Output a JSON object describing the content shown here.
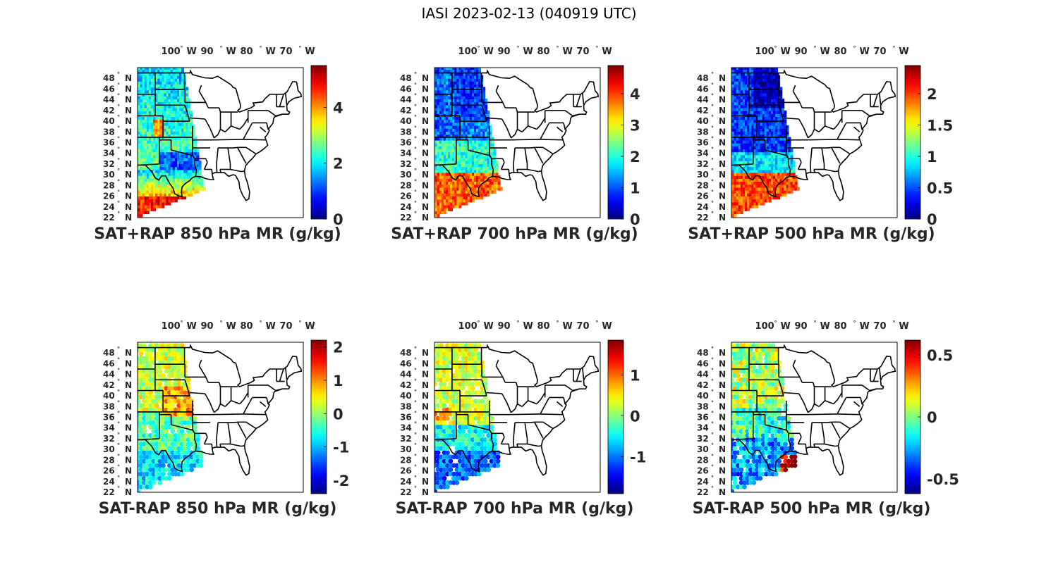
{
  "figure_title": "IASI 2023-02-13 (040919 UTC)",
  "lon_labels": [
    "100",
    "90",
    "80",
    "70"
  ],
  "lon_hemisphere": "W",
  "lat_labels": [
    "48",
    "46",
    "44",
    "42",
    "40",
    "38",
    "36",
    "34",
    "32",
    "30",
    "28",
    "26",
    "24",
    "22"
  ],
  "lat_hemisphere": "N",
  "degree_symbol": "°",
  "colormap": "jet",
  "colors": {
    "land_outline": "#000000",
    "text": "#262626",
    "background": "#ffffff"
  },
  "panels": [
    {
      "title": "SAT+RAP 850 hPa MR (g/kg)",
      "field": "total",
      "level": "850",
      "clim": [
        0,
        5.5
      ],
      "ticks": [
        "0",
        "2",
        "4"
      ],
      "tick_values": [
        0,
        2,
        4
      ]
    },
    {
      "title": "SAT+RAP 700 hPa MR (g/kg)",
      "field": "total",
      "level": "700",
      "clim": [
        0,
        4.9
      ],
      "ticks": [
        "0",
        "1",
        "2",
        "3",
        "4"
      ],
      "tick_values": [
        0,
        1,
        2,
        3,
        4
      ]
    },
    {
      "title": "SAT+RAP 500 hPa MR (g/kg)",
      "field": "total",
      "level": "500",
      "clim": [
        0,
        2.45
      ],
      "ticks": [
        "0",
        "0.5",
        "1",
        "1.5",
        "2"
      ],
      "tick_values": [
        0,
        0.5,
        1,
        1.5,
        2
      ]
    },
    {
      "title": "SAT-RAP 850 hPa MR (g/kg)",
      "field": "difference",
      "level": "850",
      "clim": [
        -2.4,
        2.2
      ],
      "ticks": [
        "-2",
        "-1",
        "0",
        "1",
        "2"
      ],
      "tick_values": [
        -2,
        -1,
        0,
        1,
        2
      ]
    },
    {
      "title": "SAT-RAP 700 hPa MR (g/kg)",
      "field": "difference",
      "level": "700",
      "clim": [
        -1.9,
        1.85
      ],
      "ticks": [
        "-1",
        "0",
        "1"
      ],
      "tick_values": [
        -1,
        0,
        1
      ]
    },
    {
      "title": "SAT-RAP 500 hPa MR (g/kg)",
      "field": "difference",
      "level": "500",
      "clim": [
        -0.62,
        0.62
      ],
      "ticks": [
        "-0.5",
        "0",
        "0.5"
      ],
      "tick_values": [
        -0.5,
        0,
        0.5
      ]
    }
  ]
}
